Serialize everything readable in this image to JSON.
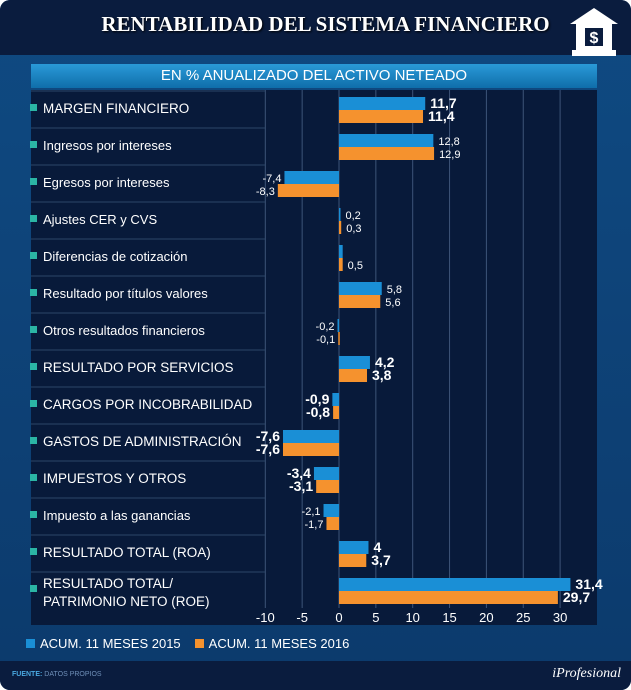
{
  "header": {
    "title": "RENTABILIDAD DEL SISTEMA FINANCIERO",
    "icon": "bank-dollar-icon"
  },
  "footer": {
    "source_label": "FUENTE:",
    "source_value": "DATOS PROPIOS",
    "brand": "iProfesional"
  },
  "chart_data": {
    "type": "bar",
    "orientation": "horizontal",
    "title": "EN % ANUALIZADO DEL ACTIVO NETEADO",
    "xlim": [
      -10,
      33
    ],
    "xticks": [
      -10,
      -5,
      0,
      5,
      10,
      15,
      20,
      25,
      30
    ],
    "grid": true,
    "legend_placement": "bottom-left",
    "categories": [
      "MARGEN FINANCIERO",
      "Ingresos por intereses",
      "Egresos por intereses",
      "Ajustes CER y CVS",
      "Diferencias de cotización",
      "Resultado por títulos valores",
      "Otros resultados financieros",
      "RESULTADO POR SERVICIOS",
      "CARGOS POR INCOBRABILIDAD",
      "GASTOS DE ADMINISTRACIÓN",
      "IMPUESTOS Y OTROS",
      "Impuesto a las ganancias",
      "RESULTADO TOTAL (ROA)",
      "RESULTADO TOTAL/ PATRIMONIO NETO (ROE)"
    ],
    "series": [
      {
        "name": "ACUM. 11 MESES 2015",
        "color": "#1a8fd6",
        "values": [
          11.7,
          12.8,
          -7.4,
          0.2,
          0.5,
          5.8,
          -0.2,
          4.2,
          -0.9,
          -7.6,
          -3.4,
          -2.1,
          4,
          31.4
        ],
        "labels": [
          "11,7",
          "12,8",
          "-7,4",
          "0,2",
          "",
          "5,8",
          "-0,2",
          "4,2",
          "-0,9",
          "-7,6",
          "-3,4",
          "-2,1",
          "4",
          "31,4"
        ]
      },
      {
        "name": "ACUM. 11 MESES 2016",
        "color": "#f5922e",
        "values": [
          11.4,
          12.9,
          -8.3,
          0.3,
          0.5,
          5.6,
          -0.1,
          3.8,
          -0.8,
          -7.6,
          -3.1,
          -1.7,
          3.7,
          29.7
        ],
        "labels": [
          "11,4",
          "12,9",
          "-8,3",
          "0,3",
          "0,5",
          "5,6",
          "-0,1",
          "3,8",
          "-0,8",
          "-7,6",
          "-3,1",
          "-1,7",
          "3,7",
          "29,7"
        ]
      }
    ],
    "bold_rows": [
      0,
      7,
      8,
      9,
      10,
      12,
      13
    ]
  }
}
